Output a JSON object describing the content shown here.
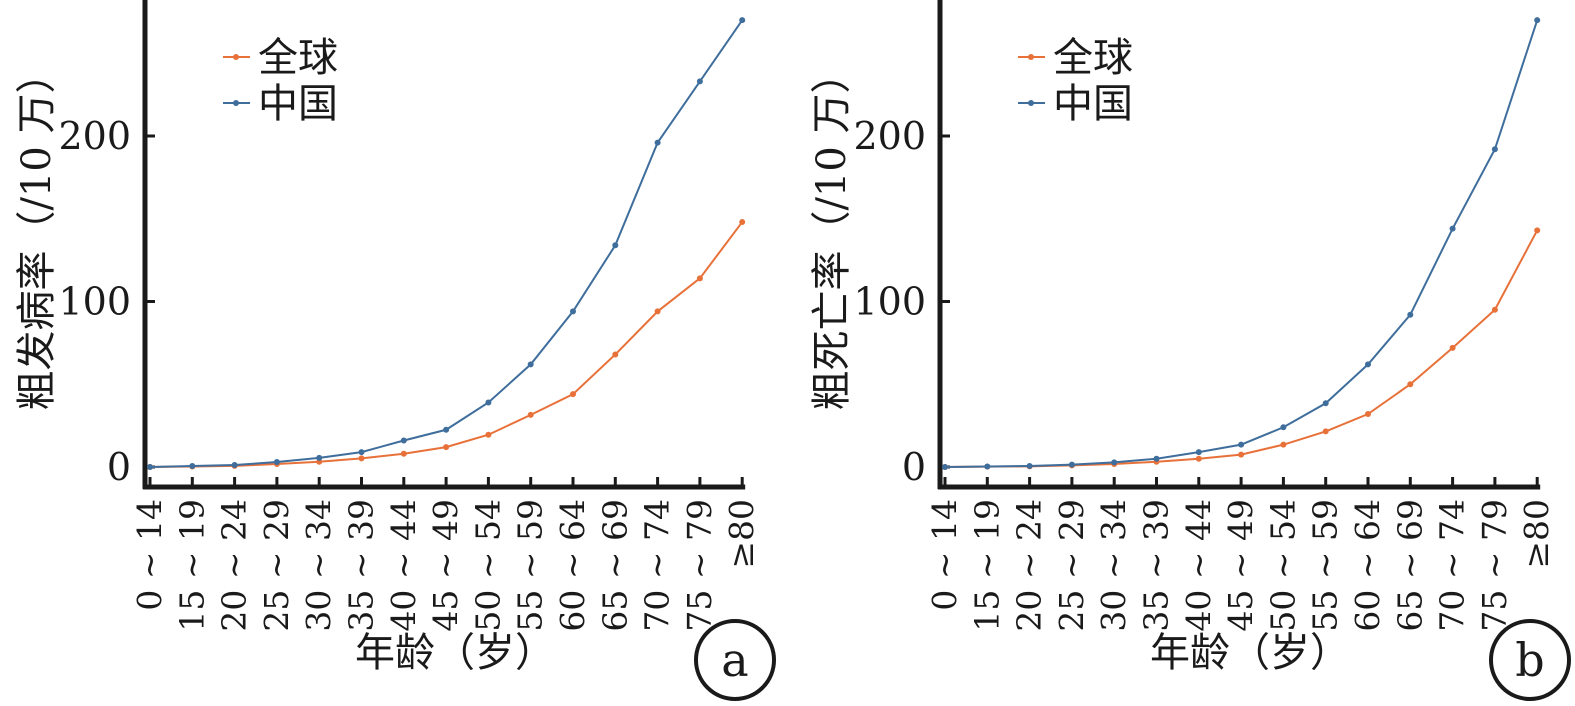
{
  "colors": {
    "global": "#e8713a",
    "china": "#3f6e9c",
    "axis": "#1a1a1a"
  },
  "chart_data": [
    {
      "type": "line",
      "panel_label": "a",
      "xlabel": "年龄（岁）",
      "ylabel": "粗发病率（/10 万）",
      "categories": [
        "0 ~ 14",
        "15 ~ 19",
        "20 ~ 24",
        "25 ~ 29",
        "30 ~ 34",
        "35 ~ 39",
        "40 ~ 44",
        "45 ~ 49",
        "50 ~ 54",
        "55 ~ 59",
        "60 ~ 64",
        "65 ~ 69",
        "70 ~ 74",
        "75 ~ 79",
        "≥80"
      ],
      "yticks": [
        "0",
        "100",
        "200"
      ],
      "ylim": [
        0,
        270
      ],
      "legend_position": "top-left",
      "series": [
        {
          "name": "全球",
          "color_key": "global",
          "values": [
            0,
            0.3,
            0.7,
            1.8,
            3.2,
            5.2,
            8.0,
            12.0,
            19.5,
            31.5,
            44.0,
            68.0,
            94.0,
            114.0,
            148.0
          ]
        },
        {
          "name": "中国",
          "color_key": "china",
          "values": [
            0,
            0.6,
            1.2,
            3.0,
            5.5,
            9.0,
            16.0,
            22.5,
            39.0,
            62.0,
            94.0,
            134.0,
            196.0,
            233.0,
            270.0
          ]
        }
      ]
    },
    {
      "type": "line",
      "panel_label": "b",
      "xlabel": "年龄（岁）",
      "ylabel": "粗死亡率（/10 万）",
      "categories": [
        "0 ~ 14",
        "15 ~ 19",
        "20 ~ 24",
        "25 ~ 29",
        "30 ~ 34",
        "35 ~ 39",
        "40 ~ 44",
        "45 ~ 49",
        "50 ~ 54",
        "55 ~ 59",
        "60 ~ 64",
        "65 ~ 69",
        "70 ~ 74",
        "75 ~ 79",
        "≥80"
      ],
      "yticks": [
        "0",
        "100",
        "200"
      ],
      "ylim": [
        0,
        270
      ],
      "legend_position": "top-left",
      "series": [
        {
          "name": "全球",
          "color_key": "global",
          "values": [
            0,
            0.2,
            0.4,
            1.0,
            1.8,
            3.2,
            5.0,
            7.5,
            13.5,
            21.5,
            32.0,
            50.0,
            72.0,
            95.0,
            143.0
          ]
        },
        {
          "name": "中国",
          "color_key": "china",
          "values": [
            0,
            0.3,
            0.6,
            1.4,
            2.8,
            5.0,
            9.0,
            13.5,
            24.0,
            38.5,
            62.0,
            92.0,
            144.0,
            192.0,
            270.0
          ]
        }
      ]
    }
  ]
}
